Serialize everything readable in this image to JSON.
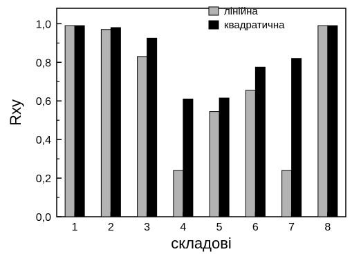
{
  "chart_data": {
    "type": "bar",
    "categories": [
      "1",
      "2",
      "3",
      "4",
      "5",
      "6",
      "7",
      "8"
    ],
    "series": [
      {
        "name": "лінійна",
        "color": "#b3b3b3",
        "values": [
          0.99,
          0.97,
          0.83,
          0.24,
          0.545,
          0.655,
          0.24,
          0.99
        ]
      },
      {
        "name": "квадратична",
        "color": "#000000",
        "values": [
          0.99,
          0.98,
          0.925,
          0.61,
          0.615,
          0.775,
          0.82,
          0.99
        ]
      }
    ],
    "xlabel": "складові",
    "ylabel": "Rxy",
    "ylim": [
      0,
      1.08
    ],
    "yticks": [
      "0,0",
      "0,2",
      "0,4",
      "0,6",
      "0,8",
      "1,0"
    ],
    "grid": false,
    "legend_position": "top-right"
  }
}
